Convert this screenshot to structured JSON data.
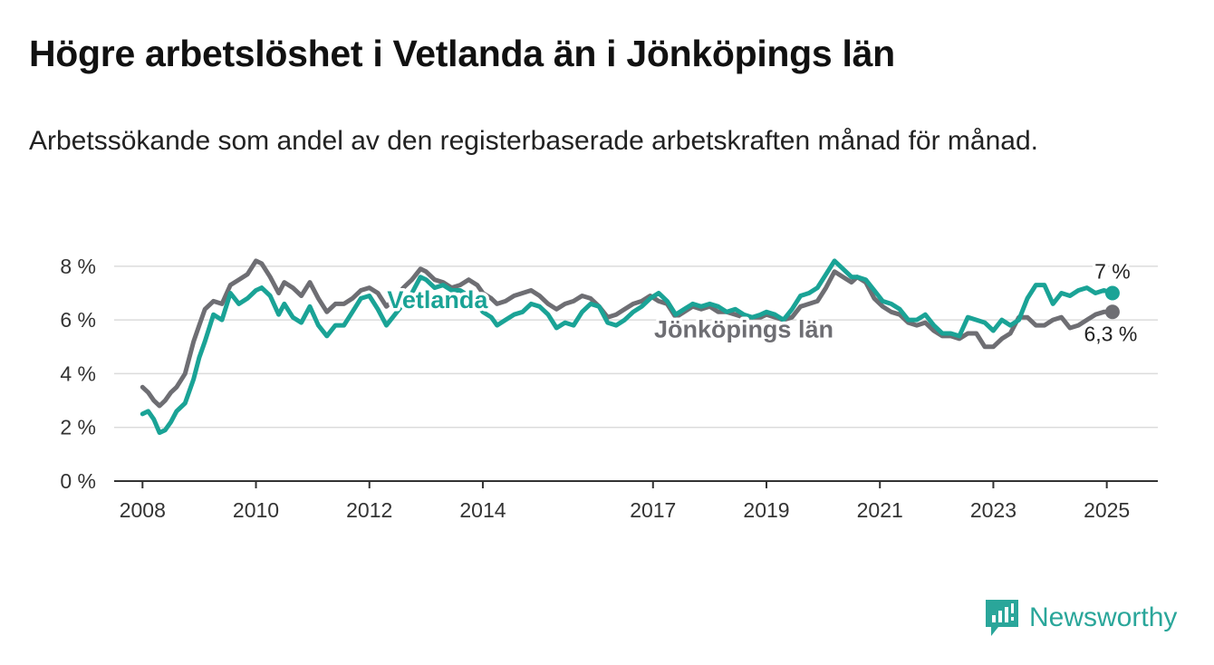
{
  "title": "Högre arbetslöshet i Vetlanda än i Jönköpings län",
  "subtitle": "Arbetssökande som andel av den registerbaserade arbetskraften månad för månad.",
  "brand": {
    "name": "Newsworthy",
    "icon": "newsworthy-logo-icon",
    "color": "#2aa69a"
  },
  "chart_data": {
    "type": "line",
    "title": "Högre arbetslöshet i Vetlanda än i Jönköpings län",
    "subtitle": "Arbetssökande som andel av den registerbaserade arbetskraften månad för månad.",
    "xlabel": "",
    "ylabel": "",
    "ylim": [
      0,
      8.4
    ],
    "xlim": [
      2007.5,
      2025.9
    ],
    "grid": true,
    "legend": "inline labels",
    "y_ticks": [
      0,
      2,
      4,
      6,
      8
    ],
    "y_tick_labels": [
      "0 %",
      "2 %",
      "4 %",
      "6 %",
      "8 %"
    ],
    "x_ticks": [
      2008,
      2010,
      2012,
      2014,
      2017,
      2019,
      2021,
      2023,
      2025
    ],
    "x_tick_labels": [
      "2008",
      "2010",
      "2012",
      "2014",
      "2017",
      "2019",
      "2021",
      "2023",
      "2025"
    ],
    "series": [
      {
        "name": "Vetlanda",
        "color": "#1aa396",
        "end_label": "7 %",
        "x": [
          2008.0,
          2008.1,
          2008.2,
          2008.3,
          2008.4,
          2008.5,
          2008.6,
          2008.75,
          2008.9,
          2009.0,
          2009.1,
          2009.25,
          2009.4,
          2009.55,
          2009.7,
          2009.85,
          2010.0,
          2010.1,
          2010.25,
          2010.4,
          2010.5,
          2010.65,
          2010.8,
          2010.95,
          2011.1,
          2011.25,
          2011.4,
          2011.55,
          2011.7,
          2011.85,
          2012.0,
          2012.15,
          2012.3,
          2012.45,
          2012.6,
          2012.75,
          2012.9,
          2013.0,
          2013.15,
          2013.3,
          2013.45,
          2013.6,
          2013.75,
          2013.9,
          2014.0,
          2014.15,
          2014.25,
          2014.4,
          2014.55,
          2014.7,
          2014.85,
          2015.0,
          2015.15,
          2015.3,
          2015.45,
          2015.6,
          2015.75,
          2015.9,
          2016.05,
          2016.2,
          2016.35,
          2016.5,
          2016.65,
          2016.8,
          2016.95,
          2017.1,
          2017.25,
          2017.4,
          2017.55,
          2017.7,
          2017.85,
          2018.0,
          2018.15,
          2018.3,
          2018.45,
          2018.6,
          2018.75,
          2018.9,
          2019.0,
          2019.15,
          2019.3,
          2019.45,
          2019.6,
          2019.75,
          2019.9,
          2020.05,
          2020.2,
          2020.35,
          2020.5,
          2020.6,
          2020.75,
          2020.9,
          2021.05,
          2021.2,
          2021.35,
          2021.5,
          2021.65,
          2021.8,
          2021.95,
          2022.1,
          2022.25,
          2022.4,
          2022.55,
          2022.7,
          2022.85,
          2023.0,
          2023.15,
          2023.3,
          2023.45,
          2023.6,
          2023.75,
          2023.9,
          2024.05,
          2024.2,
          2024.35,
          2024.5,
          2024.65,
          2024.8,
          2024.95,
          2025.1
        ],
        "values": [
          2.5,
          2.6,
          2.3,
          1.8,
          1.9,
          2.2,
          2.6,
          2.9,
          3.8,
          4.6,
          5.2,
          6.2,
          6.0,
          7.0,
          6.6,
          6.8,
          7.1,
          7.2,
          6.9,
          6.2,
          6.6,
          6.1,
          5.9,
          6.5,
          5.8,
          5.4,
          5.8,
          5.8,
          6.3,
          6.8,
          6.9,
          6.4,
          5.8,
          6.2,
          6.6,
          7.0,
          7.6,
          7.5,
          7.2,
          7.3,
          7.1,
          7.1,
          6.9,
          6.6,
          6.3,
          6.1,
          5.8,
          6.0,
          6.2,
          6.3,
          6.6,
          6.5,
          6.2,
          5.7,
          5.9,
          5.8,
          6.3,
          6.6,
          6.5,
          5.9,
          5.8,
          6.0,
          6.3,
          6.5,
          6.8,
          7.0,
          6.7,
          6.2,
          6.4,
          6.6,
          6.5,
          6.6,
          6.5,
          6.3,
          6.4,
          6.2,
          6.1,
          6.2,
          6.3,
          6.2,
          6.0,
          6.4,
          6.9,
          7.0,
          7.2,
          7.7,
          8.2,
          7.9,
          7.6,
          7.6,
          7.5,
          7.1,
          6.7,
          6.6,
          6.4,
          6.0,
          6.0,
          6.2,
          5.8,
          5.5,
          5.5,
          5.4,
          6.1,
          6.0,
          5.9,
          5.6,
          6.0,
          5.8,
          6.0,
          6.8,
          7.3,
          7.3,
          6.6,
          7.0,
          6.9,
          7.1,
          7.2,
          7.0,
          7.1,
          7.0
        ]
      },
      {
        "name": "Jönköpings län",
        "color": "#6e6e73",
        "end_label": "6,3 %",
        "x": [
          2008.0,
          2008.1,
          2008.2,
          2008.3,
          2008.4,
          2008.5,
          2008.6,
          2008.75,
          2008.9,
          2009.0,
          2009.1,
          2009.25,
          2009.4,
          2009.55,
          2009.7,
          2009.85,
          2010.0,
          2010.1,
          2010.25,
          2010.4,
          2010.5,
          2010.65,
          2010.8,
          2010.95,
          2011.1,
          2011.25,
          2011.4,
          2011.55,
          2011.7,
          2011.85,
          2012.0,
          2012.15,
          2012.3,
          2012.45,
          2012.6,
          2012.75,
          2012.9,
          2013.0,
          2013.15,
          2013.3,
          2013.45,
          2013.6,
          2013.75,
          2013.9,
          2014.0,
          2014.15,
          2014.25,
          2014.4,
          2014.55,
          2014.7,
          2014.85,
          2015.0,
          2015.15,
          2015.3,
          2015.45,
          2015.6,
          2015.75,
          2015.9,
          2016.05,
          2016.2,
          2016.35,
          2016.5,
          2016.65,
          2016.8,
          2016.95,
          2017.1,
          2017.25,
          2017.4,
          2017.55,
          2017.7,
          2017.85,
          2018.0,
          2018.15,
          2018.3,
          2018.45,
          2018.6,
          2018.75,
          2018.9,
          2019.0,
          2019.15,
          2019.3,
          2019.45,
          2019.6,
          2019.75,
          2019.9,
          2020.05,
          2020.2,
          2020.35,
          2020.5,
          2020.6,
          2020.75,
          2020.9,
          2021.05,
          2021.2,
          2021.35,
          2021.5,
          2021.65,
          2021.8,
          2021.95,
          2022.1,
          2022.25,
          2022.4,
          2022.55,
          2022.7,
          2022.85,
          2023.0,
          2023.15,
          2023.3,
          2023.45,
          2023.6,
          2023.75,
          2023.9,
          2024.05,
          2024.2,
          2024.35,
          2024.5,
          2024.65,
          2024.8,
          2024.95,
          2025.1
        ],
        "values": [
          3.5,
          3.3,
          3.0,
          2.8,
          3.0,
          3.3,
          3.5,
          4.0,
          5.2,
          5.8,
          6.4,
          6.7,
          6.6,
          7.3,
          7.5,
          7.7,
          8.2,
          8.1,
          7.6,
          7.0,
          7.4,
          7.2,
          6.9,
          7.4,
          6.8,
          6.3,
          6.6,
          6.6,
          6.8,
          7.1,
          7.2,
          7.0,
          6.5,
          6.8,
          7.2,
          7.5,
          7.9,
          7.8,
          7.5,
          7.4,
          7.2,
          7.3,
          7.5,
          7.3,
          7.0,
          6.8,
          6.6,
          6.7,
          6.9,
          7.0,
          7.1,
          6.9,
          6.6,
          6.4,
          6.6,
          6.7,
          6.9,
          6.8,
          6.5,
          6.1,
          6.2,
          6.4,
          6.6,
          6.7,
          6.9,
          6.7,
          6.6,
          6.1,
          6.3,
          6.5,
          6.4,
          6.5,
          6.3,
          6.3,
          6.2,
          6.1,
          6.1,
          6.1,
          6.2,
          6.1,
          6.0,
          6.1,
          6.5,
          6.6,
          6.7,
          7.2,
          7.8,
          7.6,
          7.4,
          7.6,
          7.4,
          6.8,
          6.5,
          6.3,
          6.2,
          5.9,
          5.8,
          5.9,
          5.6,
          5.4,
          5.4,
          5.3,
          5.5,
          5.5,
          5.0,
          5.0,
          5.3,
          5.5,
          6.1,
          6.1,
          5.8,
          5.8,
          6.0,
          6.1,
          5.7,
          5.8,
          6.0,
          6.2,
          6.3,
          6.3
        ]
      }
    ]
  }
}
